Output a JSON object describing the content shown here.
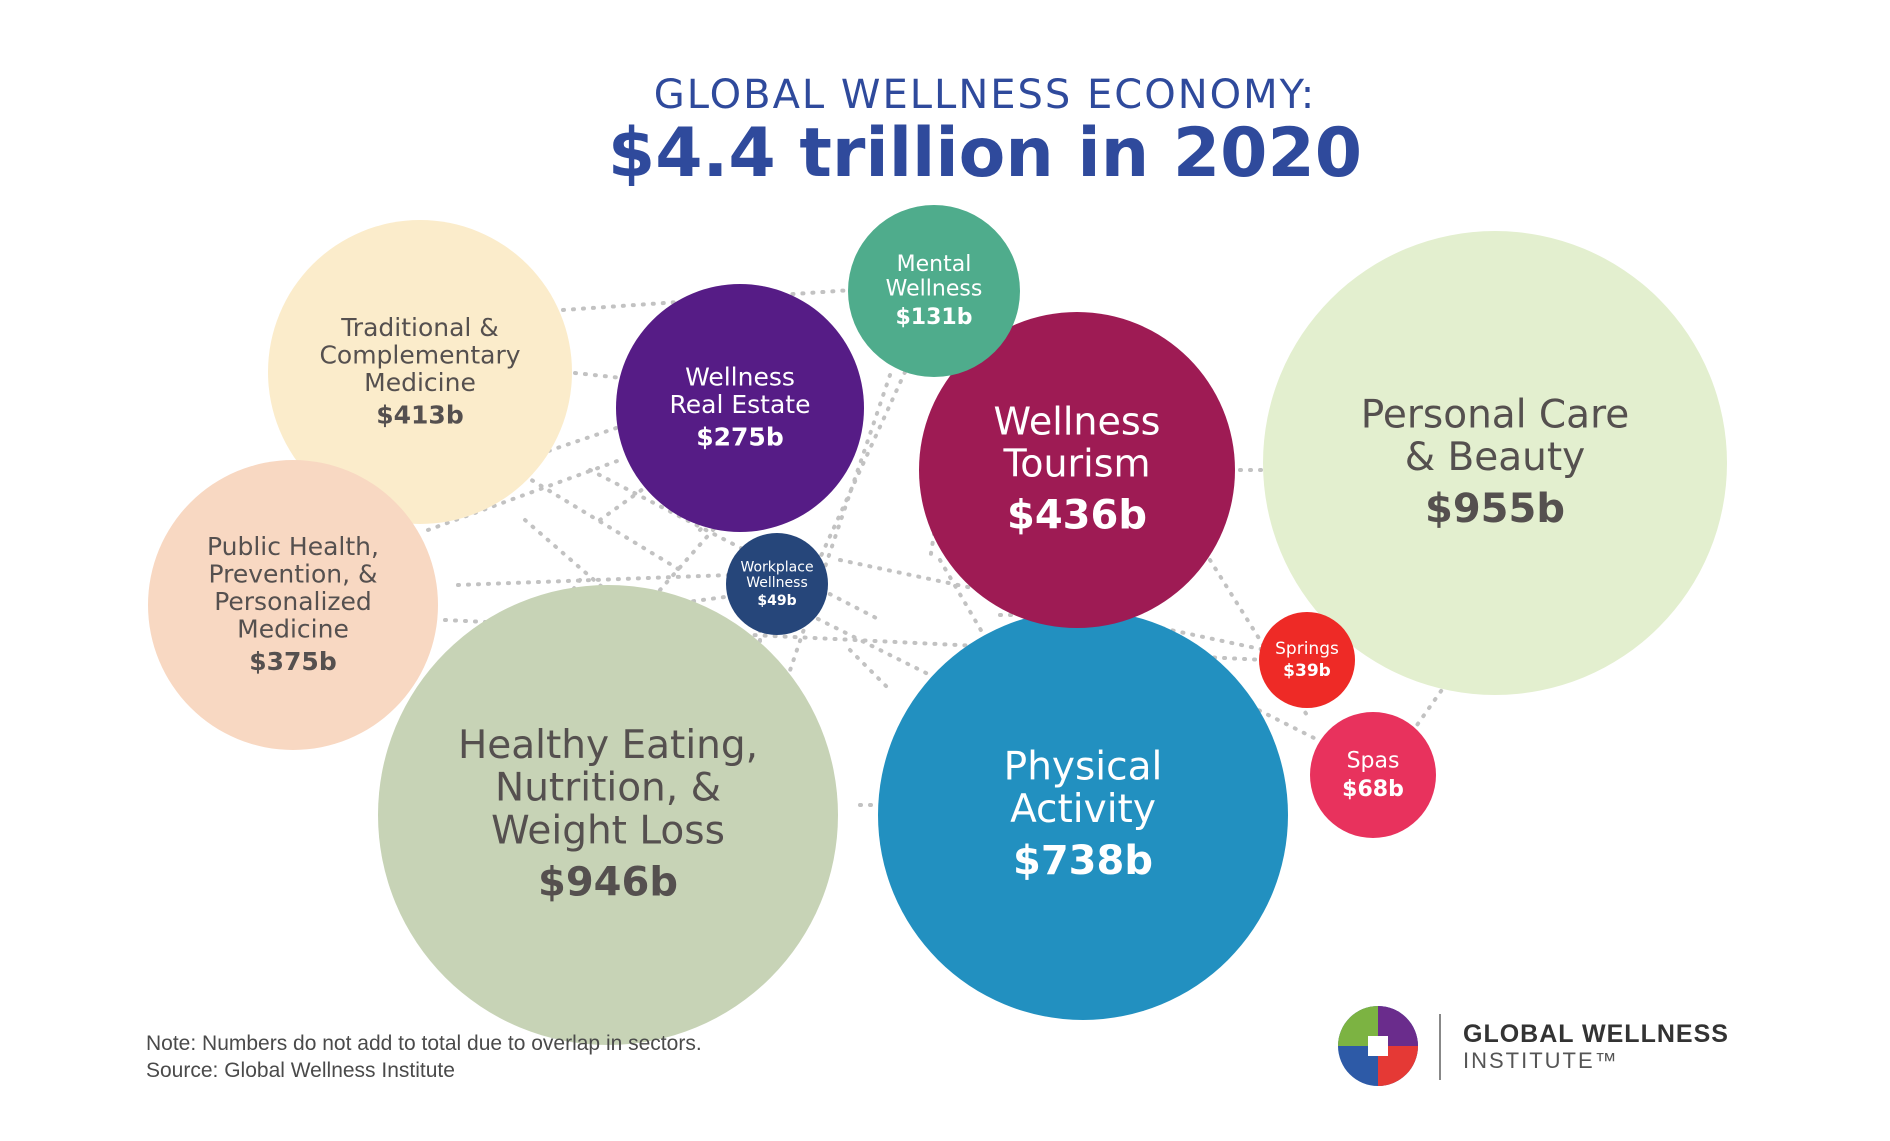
{
  "chart_data": {
    "type": "bubble",
    "title_line1": "GLOBAL WELLNESS ECONOMY:",
    "title_line2": "$4.4 trillion in 2020",
    "unit": "b",
    "sectors": [
      {
        "id": "personal-care",
        "lines": [
          "Personal Care",
          "& Beauty"
        ],
        "value": 955,
        "value_label": "$955b",
        "color": "#e3efcf",
        "text_color": "#55504f"
      },
      {
        "id": "healthy-eating",
        "lines": [
          "Healthy Eating,",
          "Nutrition, &",
          "Weight Loss"
        ],
        "value": 946,
        "value_label": "$946b",
        "color": "#c7d3b6",
        "text_color": "#55504f"
      },
      {
        "id": "physical-activity",
        "lines": [
          "Physical",
          "Activity"
        ],
        "value": 738,
        "value_label": "$738b",
        "color": "#2290c0",
        "text_color": "#ffffff"
      },
      {
        "id": "wellness-tourism",
        "lines": [
          "Wellness",
          "Tourism"
        ],
        "value": 436,
        "value_label": "$436b",
        "color": "#9e1b54",
        "text_color": "#ffffff"
      },
      {
        "id": "traditional-medicine",
        "lines": [
          "Traditional &",
          "Complementary",
          "Medicine"
        ],
        "value": 413,
        "value_label": "$413b",
        "color": "#fbeccb",
        "text_color": "#55504f"
      },
      {
        "id": "public-health",
        "lines": [
          "Public Health,",
          "Prevention, &",
          "Personalized",
          "Medicine"
        ],
        "value": 375,
        "value_label": "$375b",
        "color": "#f8d8c2",
        "text_color": "#55504f"
      },
      {
        "id": "wellness-real-estate",
        "lines": [
          "Wellness",
          "Real Estate"
        ],
        "value": 275,
        "value_label": "$275b",
        "color": "#561c86",
        "text_color": "#ffffff"
      },
      {
        "id": "mental-wellness",
        "lines": [
          "Mental",
          "Wellness"
        ],
        "value": 131,
        "value_label": "$131b",
        "color": "#4fac8c",
        "text_color": "#ffffff"
      },
      {
        "id": "spas",
        "lines": [
          "Spas"
        ],
        "value": 68,
        "value_label": "$68b",
        "color": "#e8325d",
        "text_color": "#ffffff"
      },
      {
        "id": "workplace-wellness",
        "lines": [
          "Workplace",
          "Wellness"
        ],
        "value": 49,
        "value_label": "$49b",
        "color": "#26467a",
        "text_color": "#ffffff"
      },
      {
        "id": "springs",
        "lines": [
          "Springs"
        ],
        "value": 39,
        "value_label": "$39b",
        "color": "#ee2a26",
        "text_color": "#ffffff"
      }
    ],
    "note": "Note: Numbers do not add to total due to overlap in sectors.",
    "source": "Source: Global Wellness Institute"
  },
  "logo": {
    "name_line1": "GLOBAL WELLNESS",
    "name_line2": "INSTITUTE™",
    "colors": [
      "#6a2c8c",
      "#2d5aa7",
      "#7cb342",
      "#e53935"
    ]
  }
}
